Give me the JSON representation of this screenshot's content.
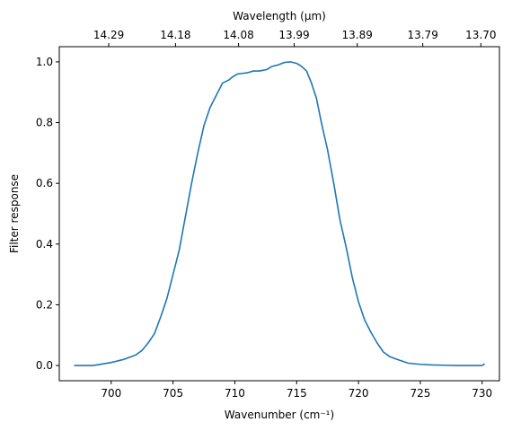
{
  "chart_data": {
    "type": "line",
    "xlabel": "Wavenumber (cm⁻¹)",
    "ylabel": "Filter response",
    "top_axis_label": "Wavelength (μm)",
    "xlim": [
      695.8,
      731.4
    ],
    "ylim": [
      -0.05,
      1.05
    ],
    "x_ticks": [
      700,
      705,
      710,
      715,
      720,
      725,
      730
    ],
    "y_ticks": [
      0.0,
      0.2,
      0.4,
      0.6,
      0.8,
      1.0
    ],
    "y_tick_labels": [
      "0.0",
      "0.2",
      "0.4",
      "0.6",
      "0.8",
      "1.0"
    ],
    "top_ticks": [
      {
        "at": 699.8,
        "label": "14.29"
      },
      {
        "at": 705.2,
        "label": "14.18"
      },
      {
        "at": 710.3,
        "label": "14.08"
      },
      {
        "at": 714.8,
        "label": "13.99"
      },
      {
        "at": 719.9,
        "label": "13.89"
      },
      {
        "at": 725.2,
        "label": "13.79"
      },
      {
        "at": 729.9,
        "label": "13.70"
      }
    ],
    "grid": false,
    "line_color": "#1f77b4",
    "series": [
      {
        "x": [
          697.0,
          698.0,
          698.5,
          699.0,
          700.0,
          701.0,
          702.0,
          702.5,
          703.0,
          703.5,
          704.0,
          704.5,
          705.0,
          705.5,
          706.0,
          706.5,
          707.0,
          707.5,
          708.0,
          708.5,
          709.0,
          709.5,
          709.8,
          710.2,
          710.6,
          711.0,
          711.5,
          712.0,
          712.6,
          713.0,
          713.5,
          714.0,
          714.5,
          715.0,
          715.4,
          715.8,
          716.2,
          716.6,
          717.0,
          717.5,
          718.0,
          718.5,
          719.0,
          719.5,
          720.0,
          720.5,
          721.0,
          721.5,
          722.0,
          722.5,
          723.0,
          723.5,
          724.0,
          725.0,
          726.0,
          727.0,
          728.0,
          729.0,
          730.0,
          730.2
        ],
        "y": [
          0.0,
          0.0,
          0.0,
          0.003,
          0.01,
          0.02,
          0.035,
          0.05,
          0.075,
          0.105,
          0.16,
          0.22,
          0.3,
          0.38,
          0.49,
          0.6,
          0.7,
          0.79,
          0.85,
          0.89,
          0.93,
          0.94,
          0.95,
          0.96,
          0.962,
          0.964,
          0.97,
          0.97,
          0.975,
          0.985,
          0.99,
          0.998,
          1.0,
          0.995,
          0.985,
          0.97,
          0.93,
          0.88,
          0.8,
          0.71,
          0.6,
          0.48,
          0.39,
          0.29,
          0.21,
          0.15,
          0.11,
          0.075,
          0.045,
          0.03,
          0.022,
          0.015,
          0.008,
          0.004,
          0.002,
          0.001,
          0.0,
          0.0,
          0.0,
          0.006
        ]
      }
    ]
  }
}
